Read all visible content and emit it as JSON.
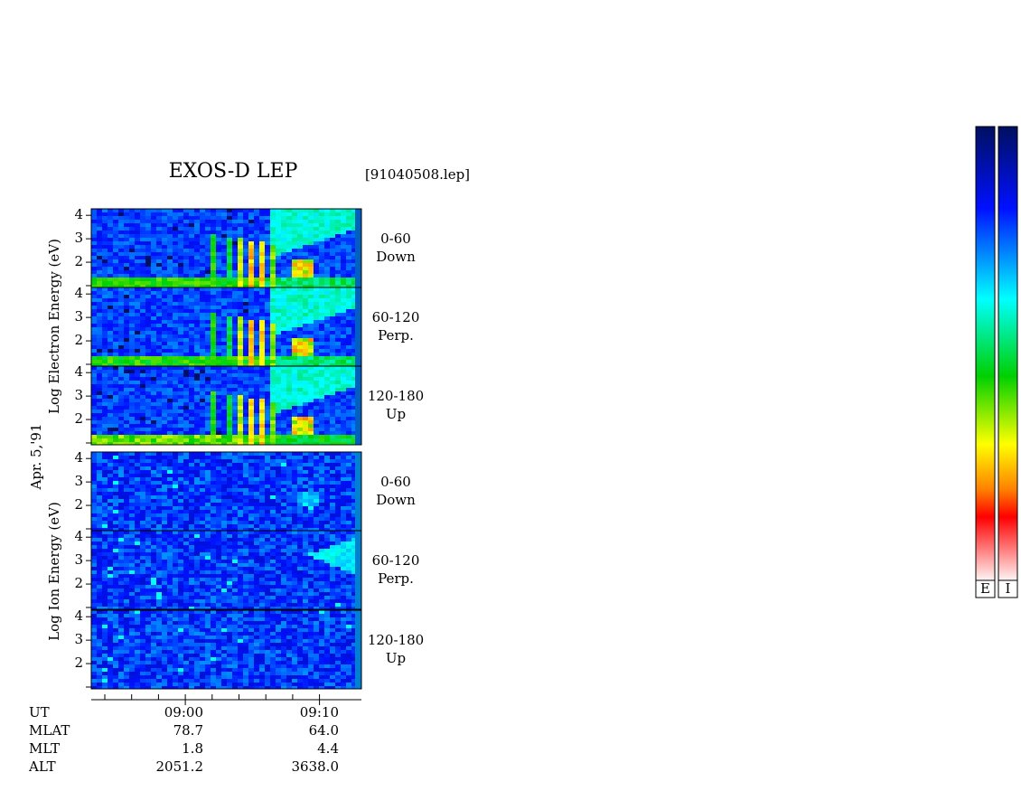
{
  "header": {
    "title": "EXOS-D LEP",
    "file": "[91040508.lep]",
    "date": "Apr. 5,'91"
  },
  "ylim": [
    1,
    4.2
  ],
  "yticks": [
    2,
    3,
    4
  ],
  "groups": [
    {
      "label": "Log Electron Energy (eV)",
      "panels": [
        {
          "angle": "0-60",
          "direction": "Down"
        },
        {
          "angle": "60-120",
          "direction": "Perp."
        },
        {
          "angle": "120-180",
          "direction": "Up"
        }
      ]
    },
    {
      "label": "Log Ion Energy (eV)",
      "panels": [
        {
          "angle": "0-60",
          "direction": "Down"
        },
        {
          "angle": "60-120",
          "direction": "Perp."
        },
        {
          "angle": "120-180",
          "direction": "Up"
        }
      ]
    }
  ],
  "orbit": {
    "rows": [
      {
        "label": "UT",
        "values": [
          "09:00",
          "09:10"
        ]
      },
      {
        "label": "MLAT",
        "values": [
          "78.7",
          "64.0"
        ]
      },
      {
        "label": "MLT",
        "values": [
          "1.8",
          "4.4"
        ]
      },
      {
        "label": "ALT",
        "values": [
          "2051.2",
          "3638.0"
        ]
      }
    ]
  },
  "colorbars": [
    "E",
    "I"
  ]
}
